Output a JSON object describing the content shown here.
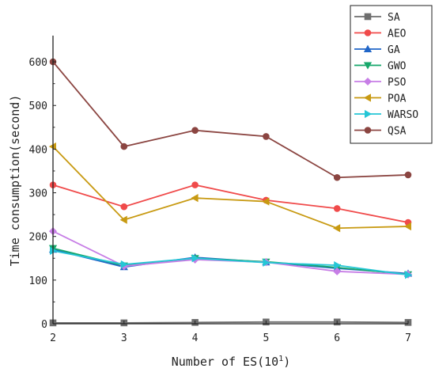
{
  "chart_data": {
    "type": "line",
    "title": "",
    "xlabel": "Number of ES(10",
    "xlabel_sup": "1",
    "xlabel_end": ")",
    "ylabel": "Time consumption(second)",
    "x": [
      2,
      3,
      4,
      5,
      6,
      7
    ],
    "x_tick_labels": [
      "2",
      "3",
      "4",
      "5",
      "6",
      "7"
    ],
    "xlim": [
      2,
      7
    ],
    "ylim": [
      0,
      660
    ],
    "y_ticks": [
      0,
      100,
      200,
      300,
      400,
      500,
      600
    ],
    "y_tick_labels": [
      "0",
      "100",
      "200",
      "300",
      "400",
      "500",
      "600"
    ],
    "legend_position": "top-right",
    "grid": false,
    "series": [
      {
        "name": "SA",
        "color": "#6e6e6e",
        "marker": "square",
        "values": [
          2,
          2,
          3,
          4,
          4,
          3
        ]
      },
      {
        "name": "AEO",
        "color": "#f04a4a",
        "marker": "circle",
        "values": [
          318,
          268,
          318,
          283,
          264,
          232
        ]
      },
      {
        "name": "GA",
        "color": "#2166c8",
        "marker": "triangle-up",
        "values": [
          170,
          130,
          152,
          141,
          127,
          115
        ]
      },
      {
        "name": "GWO",
        "color": "#17a86b",
        "marker": "triangle-down",
        "values": [
          173,
          133,
          150,
          142,
          129,
          113
        ]
      },
      {
        "name": "PSO",
        "color": "#c77ee6",
        "marker": "diamond",
        "values": [
          212,
          132,
          147,
          141,
          120,
          113
        ]
      },
      {
        "name": "POA",
        "color": "#c89a12",
        "marker": "triangle-left",
        "values": [
          406,
          238,
          288,
          280,
          219,
          223
        ]
      },
      {
        "name": "WARSO",
        "color": "#25c6d6",
        "marker": "triangle-right",
        "values": [
          167,
          136,
          150,
          140,
          134,
          112
        ]
      },
      {
        "name": "QSA",
        "color": "#8b4541",
        "marker": "circle",
        "values": [
          600,
          406,
          443,
          429,
          335,
          341
        ]
      }
    ]
  }
}
